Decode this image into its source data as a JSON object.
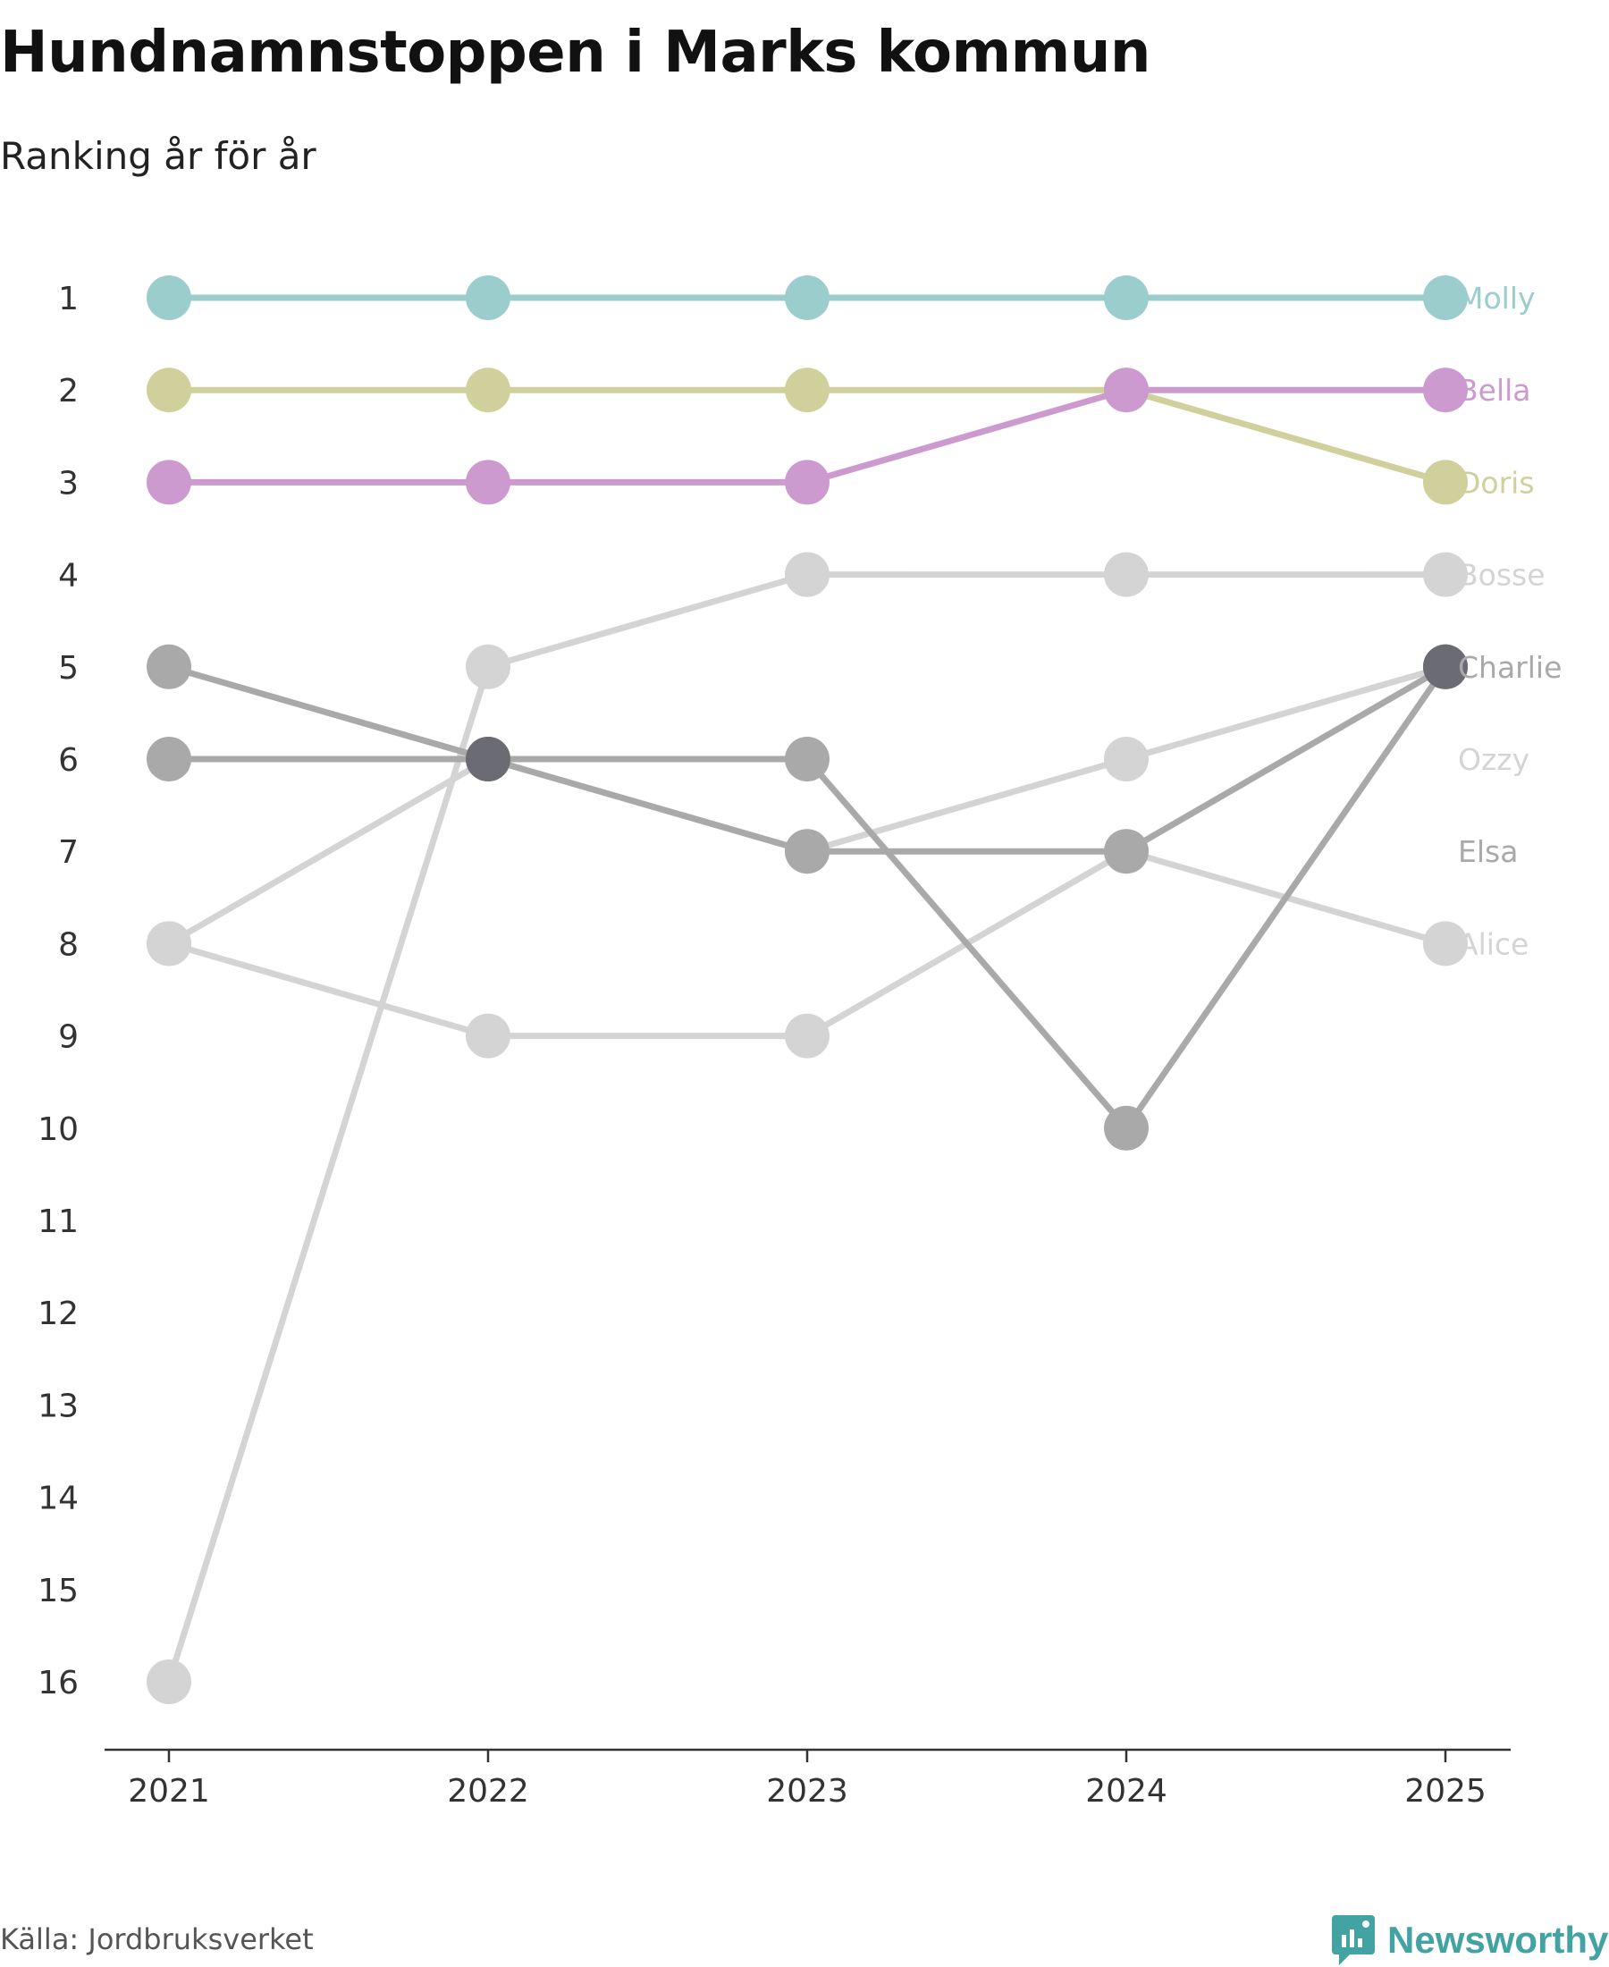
{
  "header": {
    "title": "Hundnamnstoppen i Marks kommun",
    "subtitle": "Ranking år för år"
  },
  "footer": {
    "source": "Källa: Jordbruksverket",
    "brand": "Newsworthy"
  },
  "colors": {
    "axis": "#333333",
    "tick_text": "#333333",
    "brand": "#43a3a3"
  },
  "chart_data": {
    "type": "line",
    "subtype": "bump",
    "title": "Hundnamnstoppen i Marks kommun",
    "subtitle": "Ranking år för år",
    "x": [
      "2021",
      "2022",
      "2023",
      "2024",
      "2025"
    ],
    "y_ticks": [
      1,
      2,
      3,
      4,
      5,
      6,
      7,
      8,
      9,
      10,
      11,
      12,
      13,
      14,
      15,
      16
    ],
    "ylim": [
      1,
      16
    ],
    "y_inverted": true,
    "xlabel": "",
    "ylabel": "",
    "grid": false,
    "series": [
      {
        "name": "Alice",
        "color": "#d4d4d4",
        "label_color": "#d4d4d4",
        "ranks": [
          8,
          9,
          9,
          7,
          8
        ]
      },
      {
        "name": "Ozzy",
        "color": "#d4d4d4",
        "label_color": "#d4d4d4",
        "ranks": [
          16,
          5,
          4,
          null,
          null
        ]
      },
      {
        "name": "Bosse",
        "color": "#d4d4d4",
        "label_color": "#d4d4d4",
        "ranks": [
          8,
          6,
          7,
          6,
          5
        ]
      },
      {
        "name": "Bosse",
        "color": "#d4d4d4",
        "label_color": "#d4d4d4",
        "ranks": [
          null,
          null,
          4,
          4,
          4
        ],
        "hide_label": true
      },
      {
        "name": "Elsa",
        "color": "#a9a9a9",
        "label_color": "#a9a9a9",
        "ranks": [
          5,
          6,
          6,
          10,
          5
        ]
      },
      {
        "name": "Elsa",
        "color": "#a9a9a9",
        "label_color": "#a9a9a9",
        "ranks": [
          6,
          6,
          7,
          7,
          5
        ],
        "hide_label": true
      },
      {
        "name": "Charlie",
        "color": "#a9a9a9",
        "label_color": "#a9a9a9",
        "ranks": [
          null,
          null,
          null,
          null,
          5
        ],
        "hide_label": true
      },
      {
        "name": "Doris",
        "color": "#cfd09b",
        "label_color": "#cfd09b",
        "ranks": [
          2,
          2,
          2,
          2,
          3
        ]
      },
      {
        "name": "Bella",
        "color": "#cc9ace",
        "label_color": "#cc9ace",
        "ranks": [
          3,
          3,
          3,
          2,
          2
        ]
      },
      {
        "name": "Molly",
        "color": "#9bcdcc",
        "label_color": "#9bcdcc",
        "ranks": [
          1,
          1,
          1,
          1,
          1
        ]
      }
    ],
    "labels_at_end": [
      {
        "name": "Molly",
        "rank": 1,
        "color": "#9bcdcc"
      },
      {
        "name": "Bella",
        "rank": 2,
        "color": "#cc9ace"
      },
      {
        "name": "Doris",
        "rank": 3,
        "color": "#cfd09b"
      },
      {
        "name": "Bosse",
        "rank": 4,
        "color": "#d4d4d4"
      },
      {
        "name": "Charlie",
        "rank": 5,
        "color": "#a9a9a9"
      },
      {
        "name": "Ozzy",
        "rank": 6,
        "color": "#d4d4d4"
      },
      {
        "name": "Elsa",
        "rank": 7,
        "color": "#a9a9a9"
      },
      {
        "name": "Alice",
        "rank": 8,
        "color": "#d4d4d4"
      }
    ],
    "highlight_points": [
      {
        "x": "2022",
        "rank": 6,
        "color": "#6b6b73"
      },
      {
        "x": "2025",
        "rank": 5,
        "color": "#6b6b73"
      }
    ]
  }
}
